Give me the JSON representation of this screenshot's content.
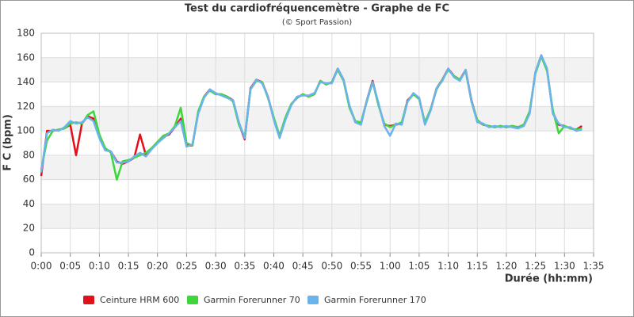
{
  "chart_data": {
    "type": "line",
    "title": "Test du cardiofréquencemètre - Graphe de FC",
    "subtitle": "(© Sport Passion)",
    "x_label": "Durée (hh:mm)",
    "y_label": "F C (bpm)",
    "x": [
      0,
      1,
      2,
      3,
      4,
      5,
      6,
      7,
      8,
      9,
      10,
      11,
      12,
      13,
      14,
      15,
      16,
      17,
      18,
      19,
      20,
      21,
      22,
      23,
      24,
      25,
      26,
      27,
      28,
      29,
      30,
      31,
      32,
      33,
      34,
      35,
      36,
      37,
      38,
      39,
      40,
      41,
      42,
      43,
      44,
      45,
      46,
      47,
      48,
      49,
      50,
      51,
      52,
      53,
      54,
      55,
      56,
      57,
      58,
      59,
      60,
      61,
      62,
      63,
      64,
      65,
      66,
      67,
      68,
      69,
      70,
      71,
      72,
      73,
      74,
      75,
      76,
      77,
      78,
      79,
      80,
      81,
      82,
      83,
      84,
      85,
      86,
      87,
      88,
      89,
      90,
      91,
      92,
      93
    ],
    "series": [
      {
        "name": "Ceinture HRM 600",
        "color": "#e3101a",
        "values": [
          63,
          100,
          100,
          101,
          102,
          105,
          80,
          106,
          112,
          110,
          95,
          85,
          83,
          75,
          73,
          75,
          78,
          97,
          80,
          85,
          90,
          95,
          97,
          103,
          110,
          88,
          88,
          115,
          128,
          134,
          130,
          130,
          128,
          125,
          106,
          93,
          135,
          142,
          140,
          128,
          110,
          95,
          110,
          122,
          127,
          130,
          128,
          130,
          141,
          138,
          140,
          151,
          142,
          120,
          108,
          106,
          125,
          141,
          122,
          105,
          104,
          105,
          106,
          125,
          130,
          127,
          106,
          118,
          135,
          142,
          151,
          145,
          142,
          150,
          125,
          108,
          105,
          104,
          103,
          104,
          103,
          104,
          103,
          105,
          115,
          148,
          162,
          150,
          115,
          105,
          104,
          102,
          101,
          104
        ]
      },
      {
        "name": "Garmin Forerunner 70",
        "color": "#3ed63a",
        "values": [
          68,
          92,
          100,
          101,
          102,
          106,
          107,
          106,
          113,
          116,
          97,
          86,
          82,
          60,
          75,
          76,
          78,
          80,
          82,
          86,
          91,
          96,
          98,
          104,
          119,
          90,
          88,
          116,
          128,
          133,
          130,
          130,
          128,
          124,
          105,
          95,
          134,
          141,
          140,
          127,
          111,
          96,
          111,
          122,
          127,
          130,
          128,
          130,
          141,
          138,
          140,
          150,
          141,
          119,
          108,
          107,
          124,
          140,
          121,
          106,
          103,
          105,
          107,
          124,
          130,
          126,
          107,
          118,
          134,
          142,
          150,
          145,
          142,
          149,
          124,
          109,
          105,
          104,
          103,
          104,
          103,
          104,
          103,
          105,
          116,
          147,
          161,
          149,
          117,
          98,
          104,
          102,
          101,
          102
        ]
      },
      {
        "name": "Garmin Forerunner 170",
        "color": "#6ab4ec",
        "values": [
          66,
          98,
          101,
          100,
          103,
          108,
          106,
          107,
          111,
          108,
          94,
          84,
          83,
          74,
          74,
          75,
          79,
          82,
          79,
          85,
          90,
          94,
          98,
          103,
          108,
          87,
          89,
          114,
          127,
          134,
          131,
          129,
          127,
          125,
          107,
          94,
          134,
          142,
          139,
          128,
          109,
          94,
          109,
          121,
          128,
          129,
          129,
          131,
          140,
          139,
          139,
          151,
          142,
          121,
          107,
          105,
          125,
          140,
          123,
          104,
          96,
          106,
          105,
          124,
          131,
          127,
          105,
          117,
          135,
          141,
          151,
          144,
          141,
          150,
          124,
          107,
          106,
          103,
          104,
          103,
          104,
          103,
          102,
          104,
          114,
          148,
          162,
          151,
          114,
          106,
          103,
          103,
          100,
          101
        ]
      }
    ],
    "xlim": [
      0,
      95
    ],
    "xticks": [
      {
        "value": 0,
        "label": "0:00"
      },
      {
        "value": 5,
        "label": "0:05"
      },
      {
        "value": 10,
        "label": "0:10"
      },
      {
        "value": 15,
        "label": "0:15"
      },
      {
        "value": 20,
        "label": "0:20"
      },
      {
        "value": 25,
        "label": "0:25"
      },
      {
        "value": 30,
        "label": "0:30"
      },
      {
        "value": 35,
        "label": "0:35"
      },
      {
        "value": 40,
        "label": "0:40"
      },
      {
        "value": 45,
        "label": "0:45"
      },
      {
        "value": 50,
        "label": "0:50"
      },
      {
        "value": 55,
        "label": "0:55"
      },
      {
        "value": 60,
        "label": "1:00"
      },
      {
        "value": 65,
        "label": "1:05"
      },
      {
        "value": 70,
        "label": "1:10"
      },
      {
        "value": 75,
        "label": "1:15"
      },
      {
        "value": 80,
        "label": "1:20"
      },
      {
        "value": 85,
        "label": "1:25"
      },
      {
        "value": 90,
        "label": "1:30"
      },
      {
        "value": 95,
        "label": "1:35"
      }
    ],
    "ylim": [
      0,
      180
    ],
    "yticks": [
      0,
      20,
      40,
      60,
      80,
      100,
      120,
      140,
      160,
      180
    ],
    "grid": true
  }
}
